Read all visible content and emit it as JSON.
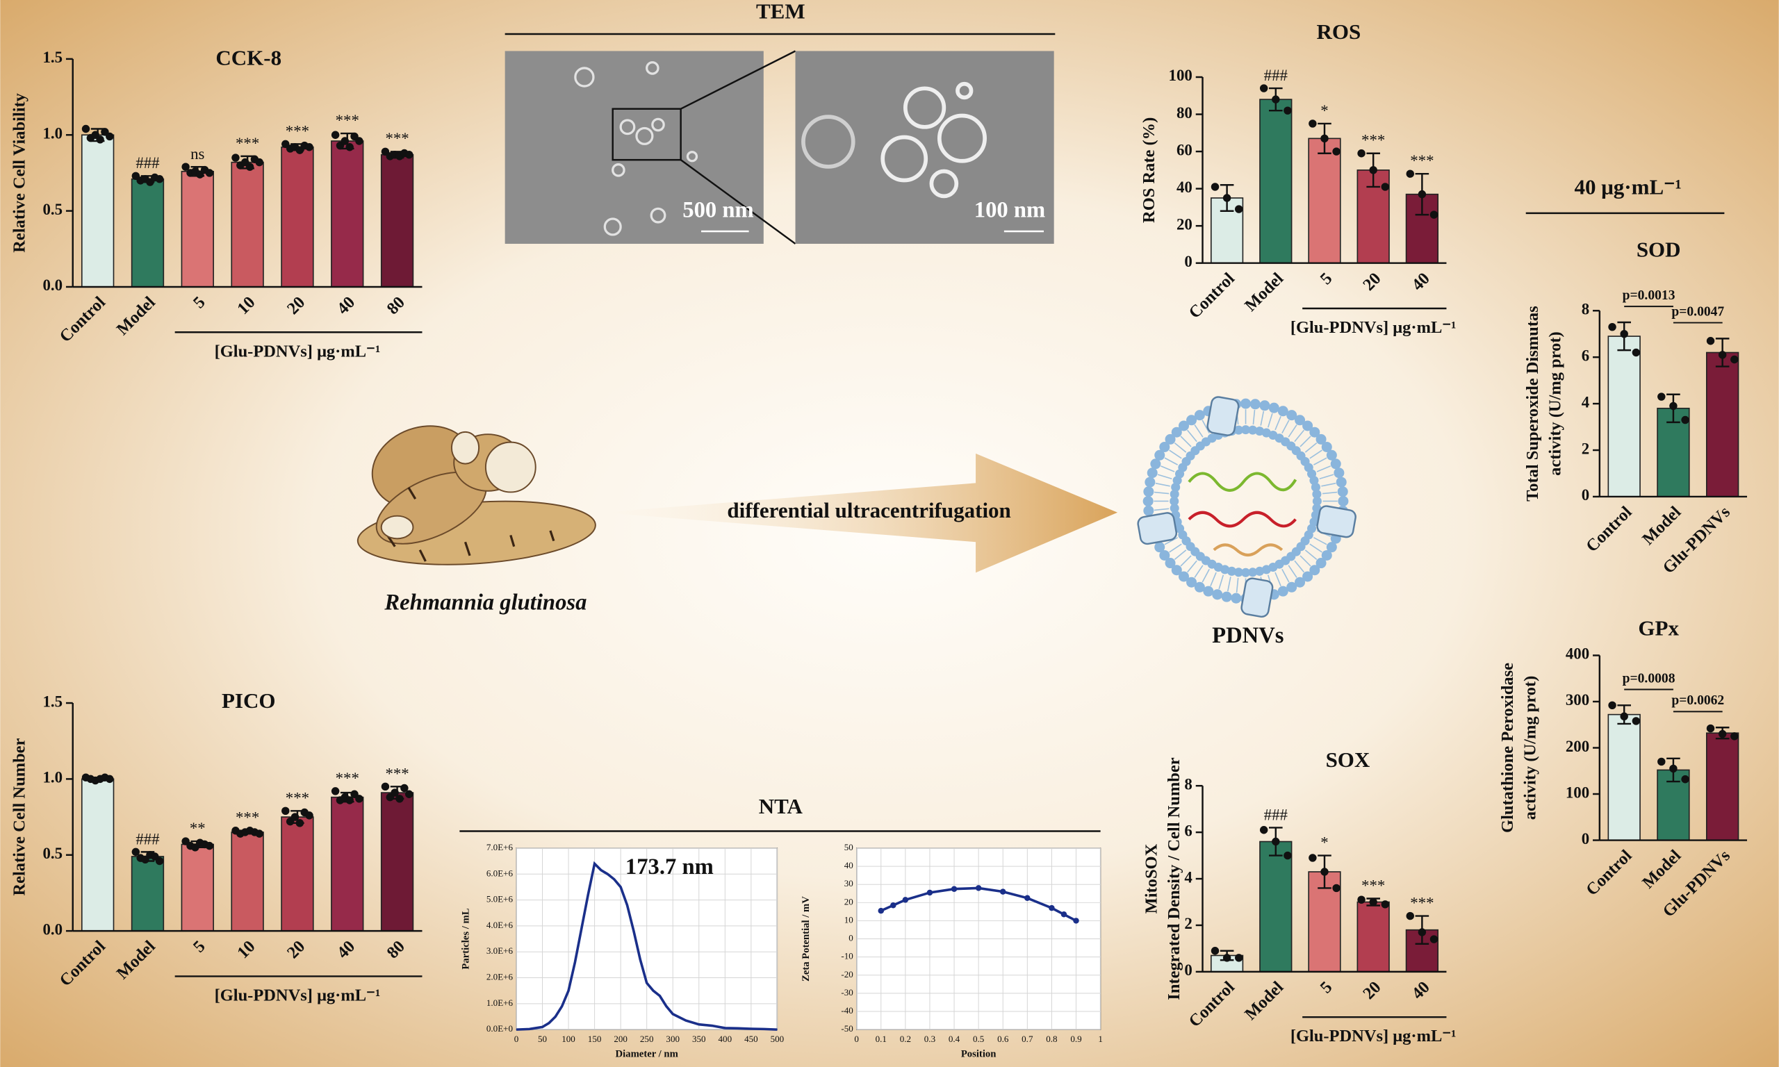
{
  "figure": {
    "tem_title": "TEM",
    "tem_scale_left": "500 nm",
    "tem_scale_right": "100 nm",
    "plant_label": "Rehmannia glutinosa",
    "arrow_label": "differential ultracentrifugation",
    "vesicle_label": "PDNVs",
    "nta_title": "NTA",
    "dose_label": "40 μg·mL⁻¹"
  },
  "chart_data": [
    {
      "type": "bar",
      "title": "CCK-8",
      "ylabel": [
        "Relative Cell Viability"
      ],
      "categories": [
        "Control",
        "Model",
        "5",
        "10",
        "20",
        "40",
        "80"
      ],
      "values": [
        1.0,
        0.71,
        0.76,
        0.82,
        0.92,
        0.96,
        0.87
      ],
      "errors": [
        0.04,
        0.02,
        0.03,
        0.04,
        0.02,
        0.05,
        0.02
      ],
      "points": [
        [
          1.04,
          0.98,
          1.0,
          0.97,
          1.02,
          0.99
        ],
        [
          0.73,
          0.7,
          0.71,
          0.69,
          0.72,
          0.71
        ],
        [
          0.79,
          0.75,
          0.76,
          0.74,
          0.77,
          0.75
        ],
        [
          0.85,
          0.8,
          0.82,
          0.79,
          0.84,
          0.82
        ],
        [
          0.94,
          0.91,
          0.92,
          0.9,
          0.93,
          0.92
        ],
        [
          1.0,
          0.93,
          0.96,
          0.92,
          0.99,
          0.96
        ],
        [
          0.89,
          0.86,
          0.87,
          0.86,
          0.88,
          0.87
        ]
      ],
      "significance": [
        null,
        "###",
        "ns",
        "***",
        "***",
        "***",
        "***"
      ],
      "group_label": "[Glu-PDNVs]  μg·mL⁻¹",
      "colors": [
        "#dcece6",
        "#2f7a5e",
        "#da7474",
        "#c95a60",
        "#b23e50",
        "#962a4a",
        "#6e1a35"
      ],
      "ylim": [
        0,
        1.5
      ],
      "yticks": [
        {
          "value": 0,
          "label": "0.0"
        },
        0.5,
        {
          "value": 1,
          "label": "1.0"
        },
        1.5
      ]
    },
    {
      "type": "bar",
      "title": "PICO",
      "ylabel": [
        "Relative Cell Number"
      ],
      "categories": [
        "Control",
        "Model",
        "5",
        "10",
        "20",
        "40",
        "80"
      ],
      "values": [
        1.0,
        0.49,
        0.57,
        0.65,
        0.75,
        0.88,
        0.91
      ],
      "errors": [
        0.01,
        0.03,
        0.02,
        0.01,
        0.04,
        0.03,
        0.04
      ],
      "points": [
        [
          1.01,
          1.0,
          0.99,
          1.0,
          1.01,
          1.0
        ],
        [
          0.52,
          0.48,
          0.47,
          0.5,
          0.49,
          0.46
        ],
        [
          0.59,
          0.56,
          0.55,
          0.58,
          0.57,
          0.56
        ],
        [
          0.66,
          0.64,
          0.65,
          0.66,
          0.65,
          0.64
        ],
        [
          0.79,
          0.72,
          0.75,
          0.71,
          0.78,
          0.76
        ],
        [
          0.92,
          0.86,
          0.88,
          0.86,
          0.9,
          0.87
        ],
        [
          0.95,
          0.88,
          0.91,
          0.87,
          0.94,
          0.9
        ]
      ],
      "significance": [
        null,
        "###",
        "**",
        "***",
        "***",
        "***",
        "***"
      ],
      "group_label": "[Glu-PDNVs]  μg·mL⁻¹",
      "colors": [
        "#dcece6",
        "#2f7a5e",
        "#da7474",
        "#c95a60",
        "#b23e50",
        "#962a4a",
        "#6e1a35"
      ],
      "ylim": [
        0,
        1.5
      ],
      "yticks": [
        {
          "value": 0,
          "label": "0.0"
        },
        0.5,
        {
          "value": 1,
          "label": "1.0"
        },
        1.5
      ]
    },
    {
      "type": "bar",
      "title": "ROS",
      "ylabel": [
        "ROS Rate (%)"
      ],
      "categories": [
        "Control",
        "Model",
        "5",
        "20",
        "40"
      ],
      "values": [
        35,
        88,
        67,
        50,
        37
      ],
      "errors": [
        7,
        6,
        8,
        9,
        11
      ],
      "points": [
        [
          41,
          35,
          29
        ],
        [
          94,
          88,
          82
        ],
        [
          75,
          67,
          60
        ],
        [
          59,
          50,
          41
        ],
        [
          48,
          37,
          26
        ]
      ],
      "significance": [
        null,
        "###",
        "*",
        "***",
        "***"
      ],
      "group_label": "[Glu-PDNVs]  μg·mL⁻¹",
      "colors": [
        "#dcece6",
        "#2f7a5e",
        "#da7474",
        "#b23e50",
        "#7a1c38"
      ],
      "ylim": [
        0,
        100
      ],
      "yticks": [
        0,
        20,
        40,
        60,
        80,
        100
      ]
    },
    {
      "type": "bar",
      "title": "SOX",
      "ylabel": [
        "MitoSOX",
        "Integrated Density / Cell Number"
      ],
      "categories": [
        "Control",
        "Model",
        "5",
        "20",
        "40"
      ],
      "values": [
        0.7,
        5.6,
        4.3,
        3.0,
        1.8
      ],
      "errors": [
        0.2,
        0.6,
        0.7,
        0.15,
        0.6
      ],
      "points": [
        [
          0.9,
          0.6,
          0.6
        ],
        [
          6.1,
          5.6,
          5.0
        ],
        [
          4.9,
          4.3,
          3.6
        ],
        [
          3.1,
          3.0,
          2.9
        ],
        [
          2.4,
          1.7,
          1.4
        ]
      ],
      "significance": [
        null,
        "###",
        "*",
        "***",
        "***"
      ],
      "group_label": "[Glu-PDNVs]  μg·mL⁻¹",
      "colors": [
        "#dcece6",
        "#2f7a5e",
        "#da7474",
        "#b23e50",
        "#7a1c38"
      ],
      "ylim": [
        0,
        8
      ],
      "yticks": [
        0,
        2,
        4,
        6,
        8
      ]
    },
    {
      "type": "bar",
      "title": "SOD",
      "ylabel": [
        "Total Superoxide Dismutas",
        "activity (U/mg prot)"
      ],
      "categories": [
        "Control",
        "Model",
        "Glu-PDNVs"
      ],
      "values": [
        6.9,
        3.8,
        6.2
      ],
      "errors": [
        0.6,
        0.6,
        0.6
      ],
      "points": [
        [
          7.3,
          7.0,
          6.2
        ],
        [
          4.3,
          3.9,
          3.3
        ],
        [
          6.7,
          6.1,
          5.9
        ]
      ],
      "p_values": [
        "p=0.0013",
        "p=0.0047"
      ],
      "colors": [
        "#dcece6",
        "#2f7a5e",
        "#7a1c38"
      ],
      "ylim": [
        0,
        8
      ],
      "yticks": [
        0,
        2,
        4,
        6,
        8
      ]
    },
    {
      "type": "bar",
      "title": "GPx",
      "ylabel": [
        "Glutathione Peroxidase",
        "activity (U/mg prot)"
      ],
      "categories": [
        "Control",
        "Model",
        "Glu-PDNVs"
      ],
      "values": [
        272,
        152,
        232
      ],
      "errors": [
        20,
        25,
        12
      ],
      "points": [
        [
          292,
          268,
          258
        ],
        [
          170,
          155,
          132
        ],
        [
          242,
          230,
          225
        ]
      ],
      "p_values": [
        "p=0.0008",
        "p=0.0062"
      ],
      "colors": [
        "#dcece6",
        "#2f7a5e",
        "#7a1c38"
      ],
      "ylim": [
        0,
        400
      ],
      "yticks": [
        0,
        100,
        200,
        300,
        400
      ]
    },
    {
      "type": "line",
      "xlabel": "Diameter / nm",
      "ylabel": "Particles / mL",
      "annotation": "173.7 nm",
      "x": [
        0,
        25,
        50,
        62.5,
        75,
        87.5,
        100,
        112.5,
        125,
        137.5,
        150,
        162.5,
        175,
        187.5,
        200,
        212.5,
        225,
        237.5,
        250,
        262.5,
        275,
        287.5,
        300,
        325,
        350,
        375,
        400,
        425,
        450,
        475,
        500
      ],
      "values": [
        0,
        20000,
        100000,
        250000,
        500000,
        900000,
        1500000,
        2600000,
        3900000,
        5200000,
        6400000,
        6150000,
        6000000,
        5800000,
        5500000,
        4800000,
        3800000,
        2700000,
        1800000,
        1500000,
        1300000,
        900000,
        600000,
        350000,
        200000,
        150000,
        60000,
        50000,
        30000,
        20000,
        0
      ],
      "color": "#1a2f8a",
      "markers": false,
      "grid": true,
      "xlim": [
        0,
        500
      ],
      "xticks": [
        0,
        50,
        100,
        150,
        200,
        250,
        300,
        350,
        400,
        450,
        500
      ],
      "ylim": [
        0,
        7000000
      ],
      "yticks": [
        {
          "value": 0,
          "label": "0.0E+0"
        },
        {
          "value": 1000000,
          "label": "1.0E+6"
        },
        {
          "value": 2000000,
          "label": "2.0E+6"
        },
        {
          "value": 3000000,
          "label": "3.0E+6"
        },
        {
          "value": 4000000,
          "label": "4.0E+6"
        },
        {
          "value": 5000000,
          "label": "5.0E+6"
        },
        {
          "value": 6000000,
          "label": "6.0E+6"
        },
        {
          "value": 7000000,
          "label": "7.0E+6"
        }
      ]
    },
    {
      "type": "line",
      "xlabel": "Position",
      "ylabel": "Zeta Potential / mV",
      "x": [
        0.1,
        0.15,
        0.2,
        0.3,
        0.4,
        0.5,
        0.6,
        0.7,
        0.8,
        0.85,
        0.9
      ],
      "values": [
        15.5,
        18.5,
        21.5,
        25.5,
        27.5,
        28,
        26,
        22.5,
        17,
        13.5,
        10
      ],
      "color": "#1a2f8a",
      "markers": true,
      "grid": true,
      "xlim": [
        0,
        1
      ],
      "xticks": [
        0,
        0.1,
        0.2,
        0.3,
        0.4,
        0.5,
        0.6,
        0.7,
        0.8,
        0.9,
        1
      ],
      "ylim": [
        -50,
        50
      ],
      "yticks": [
        -50,
        -40,
        -30,
        -20,
        -10,
        0,
        10,
        20,
        30,
        40,
        50
      ]
    }
  ]
}
